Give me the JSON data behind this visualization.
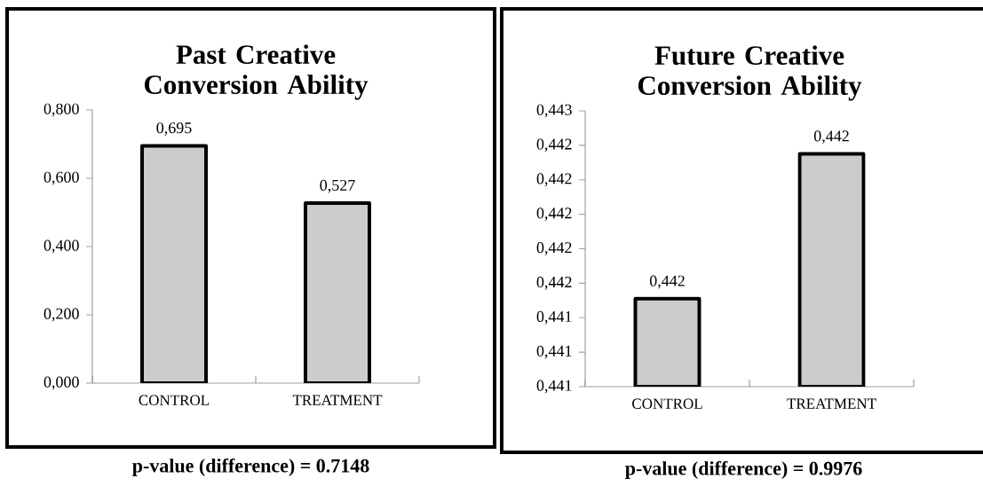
{
  "chart_data": [
    {
      "type": "bar",
      "title": "Past Creative Conversion Ability",
      "categories": [
        "CONTROL",
        "TREATMENT"
      ],
      "values": [
        0.695,
        0.527
      ],
      "value_labels": [
        "0,695",
        "0,527"
      ],
      "color": "#cccccc",
      "ylim": [
        0,
        0.8
      ],
      "yticks": [
        {
          "value": 0,
          "label": "0,000"
        },
        {
          "value": 0.2,
          "label": "0,200"
        },
        {
          "value": 0.4,
          "label": "0,400"
        },
        {
          "value": 0.6,
          "label": "0,600"
        },
        {
          "value": 0.8,
          "label": "0,800"
        }
      ],
      "annotations": [
        "p-value (difference) =  0.7148"
      ]
    },
    {
      "type": "bar",
      "title": "Future Creative Conversion Ability",
      "categories": [
        "CONTROL",
        "TREATMENT"
      ],
      "values": [
        0.44151,
        0.44235
      ],
      "value_labels": [
        "0,442",
        "0,442"
      ],
      "color": "#cccccc",
      "ylim": [
        0.441,
        0.4426
      ],
      "yticks": [
        {
          "value": 0.441,
          "label": "0,441"
        },
        {
          "value": 0.4412,
          "label": "0,441"
        },
        {
          "value": 0.4414,
          "label": "0,441"
        },
        {
          "value": 0.4416,
          "label": "0,442"
        },
        {
          "value": 0.4418,
          "label": "0,442"
        },
        {
          "value": 0.442,
          "label": "0,442"
        },
        {
          "value": 0.4422,
          "label": "0,442"
        },
        {
          "value": 0.4424,
          "label": "0,442"
        },
        {
          "value": 0.4426,
          "label": "0,443"
        }
      ],
      "annotations": [
        "p-value (difference) = 0.9976"
      ]
    }
  ]
}
